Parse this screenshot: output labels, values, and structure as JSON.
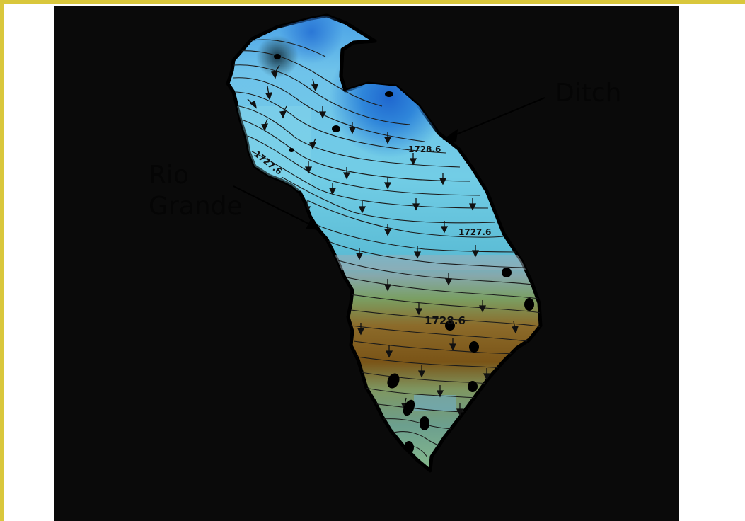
{
  "map": {
    "labels": {
      "ditch": "Ditch",
      "rio_line1": "Rio",
      "rio_line2": "Grande"
    },
    "contour_labels": [
      "1727.6",
      "1728.6",
      "1727.6",
      "1728.6"
    ],
    "colors": {
      "background": "#0a0a0a",
      "frame_border": "#d9c73c",
      "shallow_blue": "#2f7fd6",
      "light_cyan": "#6fd1ea",
      "teal": "#6fb3bd",
      "green": "#6f9f5a",
      "brown": "#7a4f14",
      "contour_line": "#1b1b1b"
    }
  }
}
